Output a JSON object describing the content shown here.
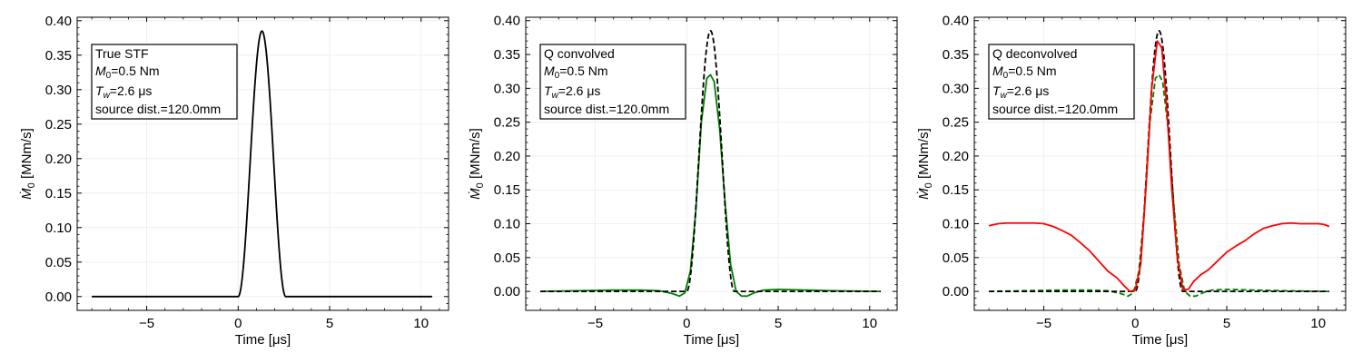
{
  "chart_data": [
    {
      "type": "line",
      "xlabel": "Time [μs]",
      "ylabel": "Ṁ0 [MNm/s]",
      "xlim": [
        -8.8,
        11.5
      ],
      "ylim": [
        -0.02,
        0.405
      ],
      "xticks": [
        -5,
        0,
        5,
        10
      ],
      "yticks": [
        0.0,
        0.05,
        0.1,
        0.15,
        0.2,
        0.25,
        0.3,
        0.35,
        0.4
      ],
      "grid": true,
      "annotation_box": {
        "line1": "True STF",
        "m0_label": "M",
        "m0_sub": "0",
        "m0_value": "=0.5 Nm",
        "tw_label": "T",
        "tw_sub": "w",
        "tw_value": "=2.6 μs",
        "line4": "source dist.=120.0mm"
      },
      "series": [
        {
          "color": "#000000",
          "dash": "solid",
          "kind": "true_stf",
          "x_range": [
            -8.0,
            10.6
          ],
          "peak": 0.385,
          "start": 0.0,
          "width": 2.6
        }
      ]
    },
    {
      "type": "line",
      "xlabel": "Time [μs]",
      "ylabel": "Ṁ0 [MNm/s]",
      "xlim": [
        -8.8,
        11.5
      ],
      "ylim": [
        -0.028,
        0.405
      ],
      "xticks": [
        -5,
        0,
        5,
        10
      ],
      "yticks": [
        0.0,
        0.05,
        0.1,
        0.15,
        0.2,
        0.25,
        0.3,
        0.35,
        0.4
      ],
      "grid": true,
      "annotation_box": {
        "line1": "Q convolved",
        "m0_label": "M",
        "m0_sub": "0",
        "m0_value": "=0.5 Nm",
        "tw_label": "T",
        "tw_sub": "w",
        "tw_value": "=2.6 μs",
        "line4": "source dist.=120.0mm"
      },
      "series": [
        {
          "color": "#008000",
          "dash": "solid",
          "points": [
            [
              -8.0,
              0.0
            ],
            [
              -6.0,
              0.001
            ],
            [
              -4.0,
              0.002
            ],
            [
              -2.5,
              0.002
            ],
            [
              -1.5,
              0.001
            ],
            [
              -0.8,
              -0.003
            ],
            [
              -0.4,
              -0.007
            ],
            [
              -0.1,
              -0.002
            ],
            [
              0.2,
              0.03
            ],
            [
              0.5,
              0.12
            ],
            [
              0.8,
              0.25
            ],
            [
              1.1,
              0.315
            ],
            [
              1.3,
              0.32
            ],
            [
              1.5,
              0.31
            ],
            [
              1.8,
              0.24
            ],
            [
              2.1,
              0.13
            ],
            [
              2.4,
              0.04
            ],
            [
              2.7,
              0.0
            ],
            [
              3.0,
              -0.007
            ],
            [
              3.3,
              -0.007
            ],
            [
              3.7,
              -0.002
            ],
            [
              4.2,
              0.002
            ],
            [
              5.0,
              0.003
            ],
            [
              6.5,
              0.002
            ],
            [
              8.0,
              0.001
            ],
            [
              10.6,
              0.0
            ]
          ]
        },
        {
          "color": "#000000",
          "dash": "dashed",
          "kind": "true_stf",
          "x_range": [
            -8.0,
            10.6
          ],
          "peak": 0.385,
          "start": 0.0,
          "width": 2.6
        }
      ]
    },
    {
      "type": "line",
      "xlabel": "Time [μs]",
      "ylabel": "Ṁ0 [MNm/s]",
      "xlim": [
        -8.8,
        11.5
      ],
      "ylim": [
        -0.028,
        0.405
      ],
      "xticks": [
        -5,
        0,
        5,
        10
      ],
      "yticks": [
        0.0,
        0.05,
        0.1,
        0.15,
        0.2,
        0.25,
        0.3,
        0.35,
        0.4
      ],
      "grid": true,
      "annotation_box": {
        "line1": "Q deconvolved",
        "m0_label": "M",
        "m0_sub": "0",
        "m0_value": "=0.5 Nm",
        "tw_label": "T",
        "tw_sub": "w",
        "tw_value": "=2.6 μs",
        "line4": "source dist.=120.0mm"
      },
      "series": [
        {
          "color": "#008000",
          "dash": "dashed",
          "points": [
            [
              -8.0,
              0.0
            ],
            [
              -6.0,
              0.001
            ],
            [
              -4.0,
              0.002
            ],
            [
              -2.5,
              0.002
            ],
            [
              -1.5,
              0.001
            ],
            [
              -0.8,
              -0.003
            ],
            [
              -0.4,
              -0.007
            ],
            [
              -0.1,
              -0.002
            ],
            [
              0.2,
              0.03
            ],
            [
              0.5,
              0.12
            ],
            [
              0.8,
              0.25
            ],
            [
              1.1,
              0.315
            ],
            [
              1.3,
              0.32
            ],
            [
              1.5,
              0.31
            ],
            [
              1.8,
              0.24
            ],
            [
              2.1,
              0.13
            ],
            [
              2.4,
              0.04
            ],
            [
              2.7,
              0.0
            ],
            [
              3.0,
              -0.007
            ],
            [
              3.3,
              -0.007
            ],
            [
              3.7,
              -0.002
            ],
            [
              4.2,
              0.002
            ],
            [
              5.0,
              0.003
            ],
            [
              6.5,
              0.002
            ],
            [
              8.0,
              0.001
            ],
            [
              10.6,
              0.0
            ]
          ]
        },
        {
          "color": "#000000",
          "dash": "dashed",
          "kind": "true_stf",
          "x_range": [
            -8.0,
            10.6
          ],
          "peak": 0.385,
          "start": 0.0,
          "width": 2.6
        },
        {
          "color": "#ff0000",
          "dash": "solid",
          "points": [
            [
              -8.0,
              0.097
            ],
            [
              -7.5,
              0.1
            ],
            [
              -7.0,
              0.101
            ],
            [
              -6.0,
              0.101
            ],
            [
              -5.5,
              0.101
            ],
            [
              -5.0,
              0.1
            ],
            [
              -4.5,
              0.096
            ],
            [
              -4.0,
              0.09
            ],
            [
              -3.5,
              0.083
            ],
            [
              -3.0,
              0.072
            ],
            [
              -2.5,
              0.06
            ],
            [
              -2.0,
              0.045
            ],
            [
              -1.5,
              0.03
            ],
            [
              -1.0,
              0.02
            ],
            [
              -0.6,
              0.008
            ],
            [
              -0.3,
              0.0
            ],
            [
              0.0,
              0.002
            ],
            [
              0.3,
              0.04
            ],
            [
              0.6,
              0.16
            ],
            [
              0.9,
              0.3
            ],
            [
              1.2,
              0.37
            ],
            [
              1.45,
              0.36
            ],
            [
              1.7,
              0.28
            ],
            [
              2.0,
              0.15
            ],
            [
              2.3,
              0.05
            ],
            [
              2.6,
              0.003
            ],
            [
              2.9,
              0.003
            ],
            [
              3.2,
              0.015
            ],
            [
              3.6,
              0.025
            ],
            [
              4.0,
              0.032
            ],
            [
              4.5,
              0.045
            ],
            [
              5.0,
              0.058
            ],
            [
              5.5,
              0.067
            ],
            [
              6.0,
              0.075
            ],
            [
              6.5,
              0.085
            ],
            [
              7.0,
              0.093
            ],
            [
              7.5,
              0.097
            ],
            [
              8.0,
              0.1
            ],
            [
              8.5,
              0.101
            ],
            [
              9.0,
              0.1
            ],
            [
              9.5,
              0.1
            ],
            [
              10.0,
              0.1
            ],
            [
              10.3,
              0.099
            ],
            [
              10.6,
              0.096
            ]
          ]
        }
      ]
    }
  ]
}
